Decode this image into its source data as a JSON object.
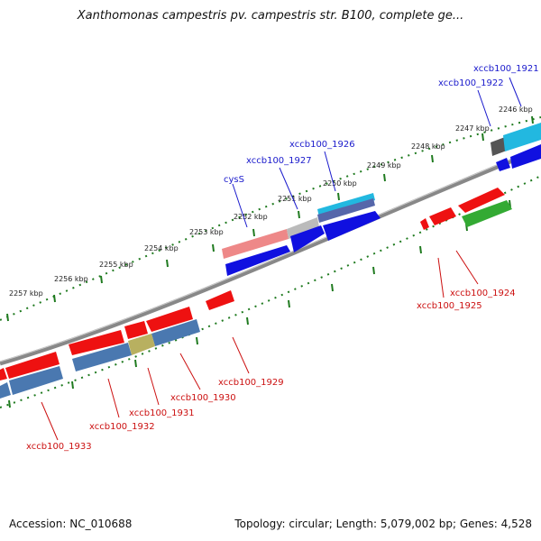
{
  "title": "Xanthomonas campestris pv. campestris str. B100, complete ge...",
  "footer": {
    "accession": "Accession: NC_010688",
    "summary": "Topology: circular; Length: 5,079,002 bp; Genes: 4,528"
  },
  "colors": {
    "backbone": "#888888",
    "tick": "#1f7a1f",
    "kbp_label": "#222222",
    "forward_label": "#1a1acc",
    "reverse_label": "#cc1111",
    "cds_forward": "#1010e0",
    "cds_reverse": "#ee1111",
    "steel_blue": "#4a78b0",
    "olive": "#b8b060",
    "green": "#33aa33",
    "pink": "#ee8888",
    "gray_feature": "#bbbbbb",
    "cyan": "#22b8e0",
    "teal": "#2aa0a0",
    "dark_gray": "#555555"
  },
  "kbp_labels": [
    "2246 kbp",
    "2247 kbp",
    "2248 kbp",
    "2249 kbp",
    "2250 kbp",
    "2251 kbp",
    "2252 kbp",
    "2253 kbp",
    "2254 kbp",
    "2255 kbp",
    "2256 kbp",
    "2257 kbp"
  ],
  "gene_labels": {
    "forward": [
      "xccb100_1921",
      "xccb100_1922",
      "xccb100_1926",
      "xccb100_1927",
      "cysS"
    ],
    "reverse": [
      "xccb100_1924",
      "xccb100_1925",
      "xccb100_1929",
      "xccb100_1930",
      "xccb100_1931",
      "xccb100_1932",
      "xccb100_1933"
    ]
  }
}
